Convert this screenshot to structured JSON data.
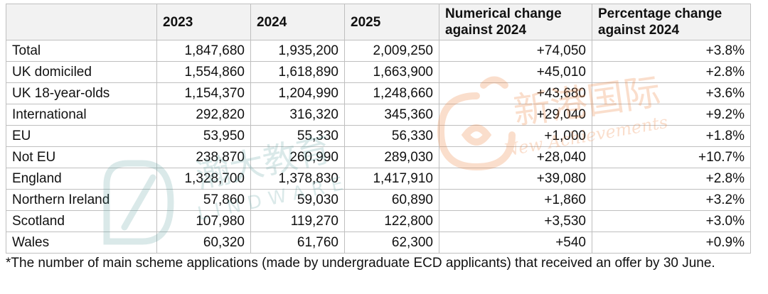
{
  "table": {
    "headers": [
      "",
      "2023",
      "2024",
      "2025",
      "Numerical change against 2024",
      "Percentage change against 2024"
    ],
    "rows": [
      [
        "Total",
        "1,847,680",
        "1,935,200",
        "2,009,250",
        "+74,050",
        "+3.8%"
      ],
      [
        "UK domiciled",
        "1,554,860",
        "1,618,890",
        "1,663,900",
        "+45,010",
        "+2.8%"
      ],
      [
        "UK 18-year-olds",
        "1,154,370",
        "1,204,990",
        "1,248,660",
        "+43,680",
        "+3.6%"
      ],
      [
        "International",
        "292,820",
        "316,320",
        "345,360",
        "+29,040",
        "+9.2%"
      ],
      [
        "EU",
        "53,950",
        "55,330",
        "56,330",
        "+1,000",
        "+1.8%"
      ],
      [
        "Not EU",
        "238,870",
        "260,990",
        "289,030",
        "+28,040",
        "+10.7%"
      ],
      [
        "England",
        "1,328,700",
        "1,378,830",
        "1,417,910",
        "+39,080",
        "+2.8%"
      ],
      [
        "Northern Ireland",
        "57,860",
        "59,030",
        "60,890",
        "+1,860",
        "+3.2%"
      ],
      [
        "Scotland",
        "107,980",
        "119,270",
        "122,800",
        "+3,530",
        "+3.0%"
      ],
      [
        "Wales",
        "60,320",
        "61,760",
        "62,300",
        "+540",
        "+0.9%"
      ]
    ]
  },
  "footnote": "*The number of main scheme applications (made by undergraduate ECD applicants) that received an offer by 30 June.",
  "watermarks": {
    "left_text": "瀚大教育",
    "left_subtext": "LINDWARE",
    "right_text": "新港国际",
    "right_subtext": "New Achievements"
  },
  "colors": {
    "header_bg": "#f2f2f2",
    "border": "#bfbfbf",
    "watermark_left": "#5aa0a0",
    "watermark_right": "#f08a4b"
  }
}
